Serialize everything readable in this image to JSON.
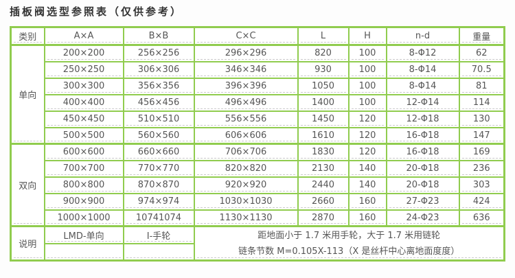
{
  "title": "插板阀选型参照表（仅供参考）",
  "colors": {
    "table_border_green": "#90cc4e",
    "inner_dash_gray": "#c9c9c9",
    "text_gray": "#555555"
  },
  "table": {
    "headers": [
      "类别",
      "A×A",
      "B×B",
      "C×C",
      "L",
      "H",
      "n-d",
      "重量"
    ],
    "groups": [
      {
        "label": "单向",
        "rows": [
          [
            "200×200",
            "256×256",
            "296×296",
            "820",
            "100",
            "8-Φ12",
            "62"
          ],
          [
            "250×250",
            "306×306",
            "346×346",
            "930",
            "100",
            "8-Φ14",
            "70.5"
          ],
          [
            "300×300",
            "356×356",
            "396×396",
            "1050",
            "100",
            "8-Φ14",
            "81"
          ],
          [
            "400×400",
            "456×456",
            "496×496",
            "1400",
            "100",
            "12-Φ14",
            "114"
          ],
          [
            "450×450",
            "510×510",
            "556×556",
            "1450",
            "120",
            "12-Φ18",
            "130"
          ],
          [
            "500×500",
            "560×560",
            "606×606",
            "1610",
            "120",
            "16-Φ18",
            "147"
          ]
        ]
      },
      {
        "label": "双向",
        "rows": [
          [
            "600×600",
            "660×660",
            "706×706",
            "1830",
            "120",
            "16-Φ18",
            "169"
          ],
          [
            "700×700",
            "770×770",
            "820×820",
            "2130",
            "140",
            "20-Φ18",
            "236"
          ],
          [
            "800×800",
            "870×870",
            "920×920",
            "2440",
            "140",
            "20-Φ18",
            "303"
          ],
          [
            "900×900",
            "974×974",
            "1030×1030",
            "2660",
            "160",
            "27-Φ23",
            "424"
          ],
          [
            "1000×1000",
            "10741074",
            "1130×1130",
            "2870",
            "160",
            "24-Φ23",
            "636"
          ]
        ]
      }
    ],
    "note": {
      "label": "说明",
      "cells": [
        "LMD-单向",
        "I-手轮"
      ],
      "lines": [
        "距地面小于 1.7 米用手轮，大于 1.7 米用链轮",
        "链条节数 M=0.105X-113（X 是丝杆中心离地面度度）"
      ]
    }
  }
}
